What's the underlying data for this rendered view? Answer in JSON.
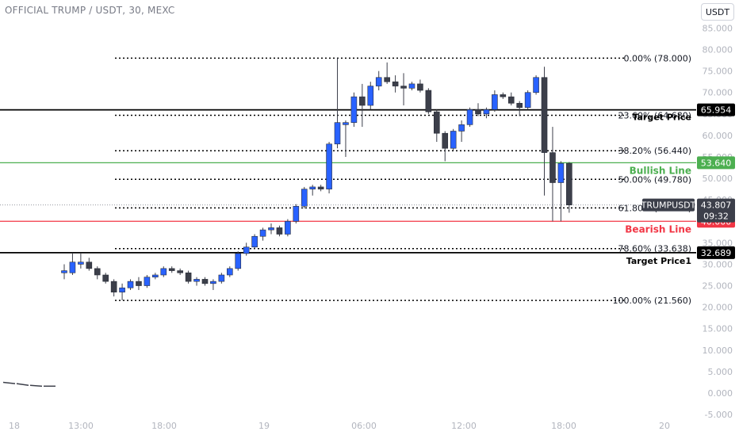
{
  "header": {
    "title": "OFFICIAL TRUMP / USDT, 30, MEXC",
    "currency_button": "USDT"
  },
  "colors": {
    "bull": "#2962ff",
    "bear": "#3c3f4a",
    "green": "#4caf50",
    "red": "#f23645",
    "black": "#000000",
    "axis_text": "#b2b5be"
  },
  "chart_data": {
    "type": "candlestick",
    "ylim": [
      -5,
      87
    ],
    "y_ticks": [
      "85.000",
      "80.000",
      "75.000",
      "70.000",
      "65.000",
      "60.000",
      "55.000",
      "50.000",
      "45.000",
      "40.000",
      "35.000",
      "30.000",
      "25.000",
      "20.000",
      "15.000",
      "10.000",
      "5.000",
      "0.000",
      "-5.000"
    ],
    "x_ticks": [
      "18",
      "13:00",
      "18:00",
      "19",
      "06:00",
      "12:00",
      "18:00",
      "20"
    ],
    "candles": [
      {
        "o": 28.0,
        "h": 30.0,
        "l": 26.5,
        "c": 28.5
      },
      {
        "o": 28.0,
        "h": 32.5,
        "l": 27.5,
        "c": 30.5
      },
      {
        "o": 30.0,
        "h": 32.5,
        "l": 29.0,
        "c": 30.5
      },
      {
        "o": 30.5,
        "h": 31.5,
        "l": 28.5,
        "c": 29.0
      },
      {
        "o": 29.0,
        "h": 29.5,
        "l": 26.5,
        "c": 27.5
      },
      {
        "o": 27.5,
        "h": 28.0,
        "l": 25.5,
        "c": 26.0
      },
      {
        "o": 26.0,
        "h": 26.5,
        "l": 22.5,
        "c": 23.5
      },
      {
        "o": 23.5,
        "h": 25.5,
        "l": 21.6,
        "c": 24.5
      },
      {
        "o": 24.5,
        "h": 26.5,
        "l": 24.0,
        "c": 26.0
      },
      {
        "o": 26.0,
        "h": 27.0,
        "l": 24.0,
        "c": 25.0
      },
      {
        "o": 25.0,
        "h": 27.5,
        "l": 24.5,
        "c": 27.0
      },
      {
        "o": 27.0,
        "h": 28.0,
        "l": 26.5,
        "c": 27.5
      },
      {
        "o": 27.5,
        "h": 29.5,
        "l": 27.0,
        "c": 29.0
      },
      {
        "o": 29.0,
        "h": 29.5,
        "l": 28.0,
        "c": 28.5
      },
      {
        "o": 28.5,
        "h": 29.0,
        "l": 27.5,
        "c": 28.0
      },
      {
        "o": 28.0,
        "h": 28.5,
        "l": 25.5,
        "c": 26.0
      },
      {
        "o": 26.0,
        "h": 27.0,
        "l": 25.0,
        "c": 26.5
      },
      {
        "o": 26.5,
        "h": 27.0,
        "l": 25.0,
        "c": 25.5
      },
      {
        "o": 25.5,
        "h": 26.5,
        "l": 24.0,
        "c": 26.0
      },
      {
        "o": 26.0,
        "h": 28.0,
        "l": 25.5,
        "c": 27.5
      },
      {
        "o": 27.5,
        "h": 29.5,
        "l": 27.0,
        "c": 29.0
      },
      {
        "o": 29.0,
        "h": 33.0,
        "l": 28.5,
        "c": 32.5
      },
      {
        "o": 32.5,
        "h": 35.0,
        "l": 32.0,
        "c": 34.0
      },
      {
        "o": 34.0,
        "h": 37.0,
        "l": 33.5,
        "c": 36.5
      },
      {
        "o": 36.5,
        "h": 38.5,
        "l": 35.5,
        "c": 38.0
      },
      {
        "o": 38.0,
        "h": 39.5,
        "l": 37.0,
        "c": 38.5
      },
      {
        "o": 38.5,
        "h": 39.0,
        "l": 36.5,
        "c": 37.0
      },
      {
        "o": 37.0,
        "h": 40.5,
        "l": 36.5,
        "c": 40.0
      },
      {
        "o": 40.0,
        "h": 44.0,
        "l": 39.5,
        "c": 43.5
      },
      {
        "o": 43.5,
        "h": 48.0,
        "l": 43.0,
        "c": 47.5
      },
      {
        "o": 47.5,
        "h": 48.5,
        "l": 46.0,
        "c": 48.0
      },
      {
        "o": 48.0,
        "h": 48.5,
        "l": 47.0,
        "c": 47.5
      },
      {
        "o": 47.5,
        "h": 58.5,
        "l": 46.5,
        "c": 58.0
      },
      {
        "o": 58.0,
        "h": 78.0,
        "l": 57.0,
        "c": 63.0
      },
      {
        "o": 62.5,
        "h": 63.5,
        "l": 55.0,
        "c": 63.0
      },
      {
        "o": 63.0,
        "h": 70.0,
        "l": 62.0,
        "c": 69.0
      },
      {
        "o": 69.0,
        "h": 72.0,
        "l": 62.0,
        "c": 67.0
      },
      {
        "o": 67.0,
        "h": 72.5,
        "l": 66.0,
        "c": 71.5
      },
      {
        "o": 71.5,
        "h": 75.0,
        "l": 70.5,
        "c": 73.5
      },
      {
        "o": 73.5,
        "h": 77.0,
        "l": 72.0,
        "c": 72.5
      },
      {
        "o": 72.5,
        "h": 74.0,
        "l": 70.0,
        "c": 71.5
      },
      {
        "o": 71.5,
        "h": 74.5,
        "l": 67.0,
        "c": 71.0
      },
      {
        "o": 71.0,
        "h": 72.5,
        "l": 70.5,
        "c": 72.0
      },
      {
        "o": 72.0,
        "h": 73.0,
        "l": 70.0,
        "c": 70.5
      },
      {
        "o": 70.5,
        "h": 71.0,
        "l": 65.0,
        "c": 65.5
      },
      {
        "o": 65.5,
        "h": 66.0,
        "l": 58.5,
        "c": 60.5
      },
      {
        "o": 60.5,
        "h": 61.0,
        "l": 54.0,
        "c": 57.0
      },
      {
        "o": 57.0,
        "h": 61.5,
        "l": 56.5,
        "c": 61.0
      },
      {
        "o": 61.0,
        "h": 63.5,
        "l": 58.5,
        "c": 62.5
      },
      {
        "o": 62.5,
        "h": 66.5,
        "l": 62.0,
        "c": 66.0
      },
      {
        "o": 66.0,
        "h": 67.5,
        "l": 64.5,
        "c": 65.0
      },
      {
        "o": 65.0,
        "h": 66.5,
        "l": 64.0,
        "c": 66.0
      },
      {
        "o": 66.0,
        "h": 70.5,
        "l": 65.5,
        "c": 69.5
      },
      {
        "o": 69.5,
        "h": 70.0,
        "l": 68.5,
        "c": 69.0
      },
      {
        "o": 69.0,
        "h": 70.0,
        "l": 67.0,
        "c": 67.5
      },
      {
        "o": 67.5,
        "h": 68.0,
        "l": 64.5,
        "c": 66.5
      },
      {
        "o": 66.5,
        "h": 70.5,
        "l": 66.0,
        "c": 70.0
      },
      {
        "o": 70.0,
        "h": 74.0,
        "l": 69.5,
        "c": 73.5
      },
      {
        "o": 73.5,
        "h": 76.0,
        "l": 46.0,
        "c": 56.0
      },
      {
        "o": 56.0,
        "h": 62.0,
        "l": 40.0,
        "c": 49.0
      },
      {
        "o": 49.0,
        "h": 54.0,
        "l": 40.0,
        "c": 53.5
      },
      {
        "o": 53.5,
        "h": 53.8,
        "l": 42.0,
        "c": 43.8
      }
    ],
    "prehistory": [
      {
        "o": 2.5,
        "c": 2.2
      },
      {
        "o": 2.2,
        "c": 1.8
      },
      {
        "o": 1.8,
        "c": 1.6
      },
      {
        "o": 1.6,
        "c": 1.6
      }
    ],
    "fib_levels": [
      {
        "value": 78.0,
        "label": "0.00% (78.000)"
      },
      {
        "value": 64.68,
        "label": "23.60% (64.680)"
      },
      {
        "value": 56.44,
        "label": "38.20% (56.440)"
      },
      {
        "value": 49.78,
        "label": "50.00% (49.780)"
      },
      {
        "value": 43.12,
        "label": "61.80% (43.120)"
      },
      {
        "value": 33.638,
        "label": "78.60% (33.638)"
      },
      {
        "value": 21.56,
        "label": "100.00% (21.560)"
      }
    ],
    "horizontal_lines": [
      {
        "value": 65.954,
        "name": "Target Price",
        "badge": "65.954",
        "color": "#000000"
      },
      {
        "value": 53.64,
        "name": "Bullish Line",
        "badge": "53.640",
        "color": "#4caf50"
      },
      {
        "value": 40.0,
        "name": "Bearish Line",
        "badge": "40.000",
        "color": "#f23645"
      },
      {
        "value": 32.689,
        "name": "Target Price1",
        "badge": "32.689",
        "color": "#000000"
      }
    ],
    "last_price": {
      "symbol": "TRUMPUSDT",
      "value": 43.807,
      "label": "43.807",
      "countdown": "09:32"
    }
  }
}
